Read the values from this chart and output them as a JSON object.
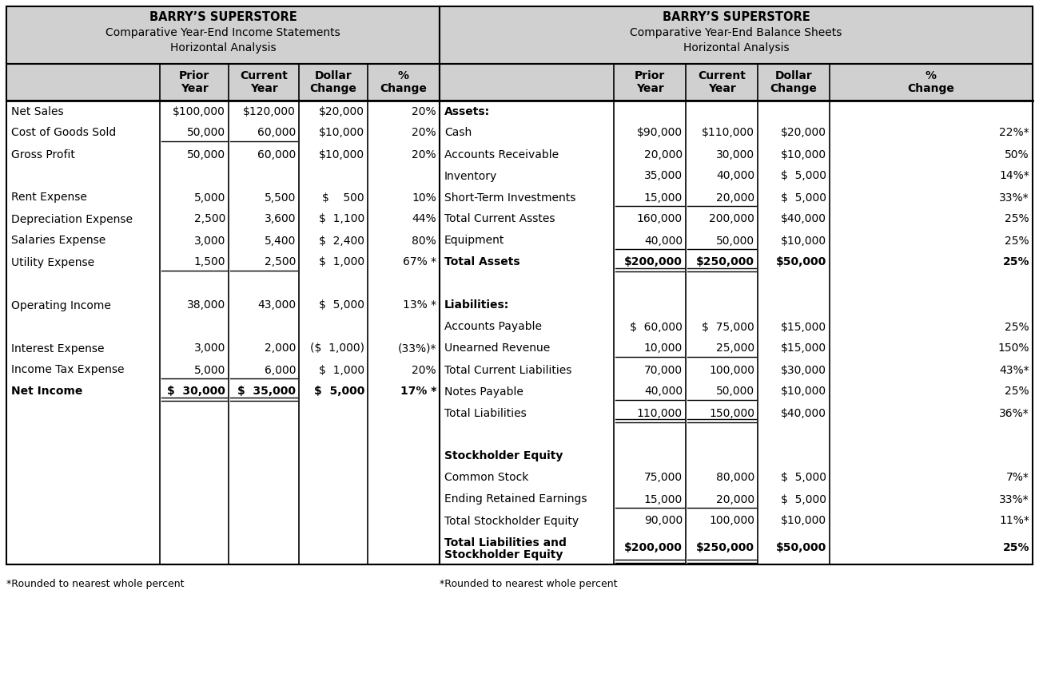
{
  "left_title": [
    "BARRY’S SUPERSTORE",
    "Comparative Year-End Income Statements",
    "Horizontal Analysis"
  ],
  "right_title": [
    "BARRY’S SUPERSTORE",
    "Comparative Year-End Balance Sheets",
    "Horizontal Analysis"
  ],
  "left_headers": [
    "",
    "Prior\nYear",
    "Current\nYear",
    "Dollar\nChange",
    "%\nChange"
  ],
  "right_headers": [
    "",
    "Prior\nYear",
    "Current\nYear",
    "Dollar\nChange",
    "%\nChange"
  ],
  "left_rows": [
    {
      "label": "Net Sales",
      "prior": "$100,000",
      "current": "$120,000",
      "dollar": "$20,000",
      "pct": "20%",
      "bold": false,
      "ul_prior": false,
      "ul_curr": false,
      "dbl_prior": false,
      "dbl_curr": false
    },
    {
      "label": "Cost of Goods Sold",
      "prior": "50,000",
      "current": "60,000",
      "dollar": "$10,000",
      "pct": "20%",
      "bold": false,
      "ul_prior": true,
      "ul_curr": true,
      "dbl_prior": false,
      "dbl_curr": false
    },
    {
      "label": "Gross Profit",
      "prior": "50,000",
      "current": "60,000",
      "dollar": "$10,000",
      "pct": "20%",
      "bold": false,
      "ul_prior": false,
      "ul_curr": false,
      "dbl_prior": false,
      "dbl_curr": false
    },
    {
      "label": "",
      "prior": "",
      "current": "",
      "dollar": "",
      "pct": "",
      "bold": false,
      "ul_prior": false,
      "ul_curr": false,
      "dbl_prior": false,
      "dbl_curr": false
    },
    {
      "label": "Rent Expense",
      "prior": "5,000",
      "current": "5,500",
      "dollar": "$    500",
      "pct": "10%",
      "bold": false,
      "ul_prior": false,
      "ul_curr": false,
      "dbl_prior": false,
      "dbl_curr": false
    },
    {
      "label": "Depreciation Expense",
      "prior": "2,500",
      "current": "3,600",
      "dollar": "$  1,100",
      "pct": "44%",
      "bold": false,
      "ul_prior": false,
      "ul_curr": false,
      "dbl_prior": false,
      "dbl_curr": false
    },
    {
      "label": "Salaries Expense",
      "prior": "3,000",
      "current": "5,400",
      "dollar": "$  2,400",
      "pct": "80%",
      "bold": false,
      "ul_prior": false,
      "ul_curr": false,
      "dbl_prior": false,
      "dbl_curr": false
    },
    {
      "label": "Utility Expense",
      "prior": "1,500",
      "current": "2,500",
      "dollar": "$  1,000",
      "pct": "67% *",
      "bold": false,
      "ul_prior": true,
      "ul_curr": true,
      "dbl_prior": false,
      "dbl_curr": false
    },
    {
      "label": "",
      "prior": "",
      "current": "",
      "dollar": "",
      "pct": "",
      "bold": false,
      "ul_prior": false,
      "ul_curr": false,
      "dbl_prior": false,
      "dbl_curr": false
    },
    {
      "label": "Operating Income",
      "prior": "38,000",
      "current": "43,000",
      "dollar": "$  5,000",
      "pct": "13% *",
      "bold": false,
      "ul_prior": false,
      "ul_curr": false,
      "dbl_prior": false,
      "dbl_curr": false
    },
    {
      "label": "",
      "prior": "",
      "current": "",
      "dollar": "",
      "pct": "",
      "bold": false,
      "ul_prior": false,
      "ul_curr": false,
      "dbl_prior": false,
      "dbl_curr": false
    },
    {
      "label": "Interest Expense",
      "prior": "3,000",
      "current": "2,000",
      "dollar": "($  1,000)",
      "pct": "(33%)*",
      "bold": false,
      "ul_prior": false,
      "ul_curr": false,
      "dbl_prior": false,
      "dbl_curr": false
    },
    {
      "label": "Income Tax Expense",
      "prior": "5,000",
      "current": "6,000",
      "dollar": "$  1,000",
      "pct": "20%",
      "bold": false,
      "ul_prior": true,
      "ul_curr": true,
      "dbl_prior": false,
      "dbl_curr": false
    },
    {
      "label": "Net Income",
      "prior": "$  30,000",
      "current": "$  35,000",
      "dollar": "$  5,000",
      "pct": "17% *",
      "bold": true,
      "ul_prior": false,
      "ul_curr": false,
      "dbl_prior": true,
      "dbl_curr": true
    }
  ],
  "right_rows": [
    {
      "label": "Assets:",
      "prior": "",
      "current": "",
      "dollar": "",
      "pct": "",
      "bold": true,
      "ul_prior": false,
      "ul_curr": false,
      "dbl_prior": false,
      "dbl_curr": false
    },
    {
      "label": "Cash",
      "prior": "$90,000",
      "current": "$110,000",
      "dollar": "$20,000",
      "pct": "22%*",
      "bold": false,
      "ul_prior": false,
      "ul_curr": false,
      "dbl_prior": false,
      "dbl_curr": false
    },
    {
      "label": "Accounts Receivable",
      "prior": "20,000",
      "current": "30,000",
      "dollar": "$10,000",
      "pct": "50%",
      "bold": false,
      "ul_prior": false,
      "ul_curr": false,
      "dbl_prior": false,
      "dbl_curr": false
    },
    {
      "label": "Inventory",
      "prior": "35,000",
      "current": "40,000",
      "dollar": "$  5,000",
      "pct": "14%*",
      "bold": false,
      "ul_prior": false,
      "ul_curr": false,
      "dbl_prior": false,
      "dbl_curr": false
    },
    {
      "label": "Short-Term Investments",
      "prior": "15,000",
      "current": "20,000",
      "dollar": "$  5,000",
      "pct": "33%*",
      "bold": false,
      "ul_prior": true,
      "ul_curr": true,
      "dbl_prior": false,
      "dbl_curr": false
    },
    {
      "label": "Total Current Asstes",
      "prior": "160,000",
      "current": "200,000",
      "dollar": "$40,000",
      "pct": "25%",
      "bold": false,
      "ul_prior": false,
      "ul_curr": false,
      "dbl_prior": false,
      "dbl_curr": false
    },
    {
      "label": "Equipment",
      "prior": "40,000",
      "current": "50,000",
      "dollar": "$10,000",
      "pct": "25%",
      "bold": false,
      "ul_prior": true,
      "ul_curr": true,
      "dbl_prior": false,
      "dbl_curr": false
    },
    {
      "label": "Total Assets",
      "prior": "$200,000",
      "current": "$250,000",
      "dollar": "$50,000",
      "pct": "25%",
      "bold": true,
      "ul_prior": false,
      "ul_curr": false,
      "dbl_prior": true,
      "dbl_curr": true
    },
    {
      "label": "",
      "prior": "",
      "current": "",
      "dollar": "",
      "pct": "",
      "bold": false,
      "ul_prior": false,
      "ul_curr": false,
      "dbl_prior": false,
      "dbl_curr": false
    },
    {
      "label": "Liabilities:",
      "prior": "",
      "current": "",
      "dollar": "",
      "pct": "",
      "bold": true,
      "ul_prior": false,
      "ul_curr": false,
      "dbl_prior": false,
      "dbl_curr": false
    },
    {
      "label": "Accounts Payable",
      "prior": "$  60,000",
      "current": "$  75,000",
      "dollar": "$15,000",
      "pct": "25%",
      "bold": false,
      "ul_prior": false,
      "ul_curr": false,
      "dbl_prior": false,
      "dbl_curr": false
    },
    {
      "label": "Unearned Revenue",
      "prior": "10,000",
      "current": "25,000",
      "dollar": "$15,000",
      "pct": "150%",
      "bold": false,
      "ul_prior": true,
      "ul_curr": true,
      "dbl_prior": false,
      "dbl_curr": false
    },
    {
      "label": "Total Current Liabilities",
      "prior": "70,000",
      "current": "100,000",
      "dollar": "$30,000",
      "pct": "43%*",
      "bold": false,
      "ul_prior": false,
      "ul_curr": false,
      "dbl_prior": false,
      "dbl_curr": false
    },
    {
      "label": "Notes Payable",
      "prior": "40,000",
      "current": "50,000",
      "dollar": "$10,000",
      "pct": "25%",
      "bold": false,
      "ul_prior": true,
      "ul_curr": true,
      "dbl_prior": false,
      "dbl_curr": false
    },
    {
      "label": "Total Liabilities",
      "prior": "110,000",
      "current": "150,000",
      "dollar": "$40,000",
      "pct": "36%*",
      "bold": false,
      "ul_prior": false,
      "ul_curr": false,
      "dbl_prior": true,
      "dbl_curr": true
    },
    {
      "label": "",
      "prior": "",
      "current": "",
      "dollar": "",
      "pct": "",
      "bold": false,
      "ul_prior": false,
      "ul_curr": false,
      "dbl_prior": false,
      "dbl_curr": false
    },
    {
      "label": "Stockholder Equity",
      "prior": "",
      "current": "",
      "dollar": "",
      "pct": "",
      "bold": true,
      "ul_prior": false,
      "ul_curr": false,
      "dbl_prior": false,
      "dbl_curr": false
    },
    {
      "label": "Common Stock",
      "prior": "75,000",
      "current": "80,000",
      "dollar": "$  5,000",
      "pct": "7%*",
      "bold": false,
      "ul_prior": false,
      "ul_curr": false,
      "dbl_prior": false,
      "dbl_curr": false
    },
    {
      "label": "Ending Retained Earnings",
      "prior": "15,000",
      "current": "20,000",
      "dollar": "$  5,000",
      "pct": "33%*",
      "bold": false,
      "ul_prior": true,
      "ul_curr": true,
      "dbl_prior": false,
      "dbl_curr": false
    },
    {
      "label": "Total Stockholder Equity",
      "prior": "90,000",
      "current": "100,000",
      "dollar": "$10,000",
      "pct": "11%*",
      "bold": false,
      "ul_prior": false,
      "ul_curr": false,
      "dbl_prior": false,
      "dbl_curr": false
    },
    {
      "label": "Total Liabilities and\nStockholder Equity",
      "prior": "$200,000",
      "current": "$250,000",
      "dollar": "$50,000",
      "pct": "25%",
      "bold": true,
      "ul_prior": false,
      "ul_curr": false,
      "dbl_prior": true,
      "dbl_curr": true
    }
  ],
  "bg_header": "#d0d0d0",
  "bg_white": "#ffffff",
  "footnote": "*Rounded to nearest whole percent",
  "title_fontsize": 10.5,
  "header_fontsize": 10,
  "data_fontsize": 10
}
